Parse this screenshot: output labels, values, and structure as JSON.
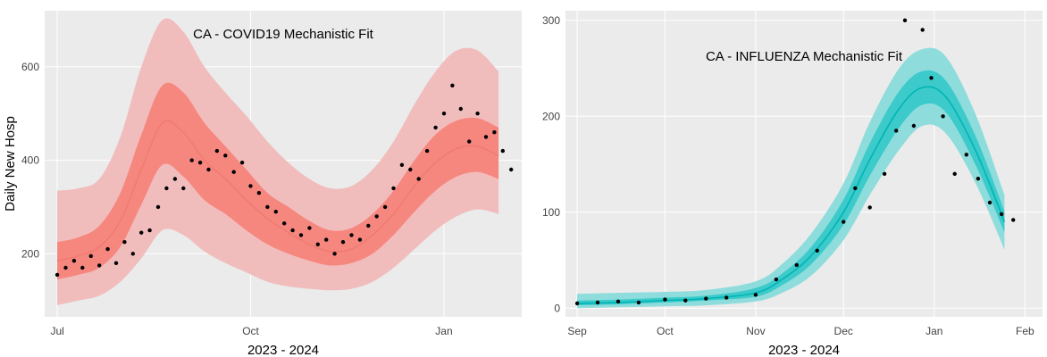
{
  "chart_data": [
    {
      "type": "area",
      "title": "CA - COVID19 Mechanistic Fit",
      "xlabel": "2023 - 2024",
      "ylabel": "Daily New Hosp",
      "x_range": [
        "2023-06-25",
        "2024-02-07"
      ],
      "ylim": [
        65,
        720
      ],
      "x_ticks": [
        {
          "date": "2023-07-01",
          "label": "Jul"
        },
        {
          "date": "2023-10-01",
          "label": "Oct"
        },
        {
          "date": "2024-01-01",
          "label": "Jan"
        }
      ],
      "y_ticks": [
        200,
        400,
        600
      ],
      "grid": true,
      "legend": "none",
      "colors": {
        "band_outer": "#f1bcbc",
        "band_inner": "#f6877f",
        "median": "#f07b73",
        "points": "#000000",
        "plot_bg": "#ebebeb"
      },
      "band": {
        "x": [
          "2023-07-01",
          "2023-07-11",
          "2023-07-21",
          "2023-07-31",
          "2023-08-10",
          "2023-08-20",
          "2023-08-30",
          "2023-09-09",
          "2023-09-19",
          "2023-09-29",
          "2023-10-09",
          "2023-10-19",
          "2023-10-29",
          "2023-11-08",
          "2023-11-18",
          "2023-11-28",
          "2023-12-08",
          "2023-12-18",
          "2023-12-28",
          "2024-01-07",
          "2024-01-17",
          "2024-01-27"
        ],
        "median": [
          185,
          195,
          215,
          270,
          380,
          480,
          460,
          400,
          360,
          315,
          275,
          245,
          220,
          205,
          210,
          240,
          285,
          345,
          395,
          425,
          430,
          410
        ],
        "inner_low": [
          145,
          155,
          170,
          215,
          305,
          390,
          365,
          315,
          285,
          250,
          220,
          200,
          185,
          175,
          180,
          200,
          240,
          290,
          335,
          365,
          375,
          360
        ],
        "inner_high": [
          225,
          235,
          260,
          330,
          455,
          560,
          545,
          480,
          430,
          380,
          330,
          300,
          270,
          250,
          255,
          285,
          335,
          400,
          455,
          485,
          490,
          470
        ],
        "outer_low": [
          90,
          100,
          110,
          140,
          190,
          250,
          240,
          205,
          180,
          160,
          140,
          130,
          125,
          122,
          125,
          140,
          170,
          210,
          250,
          280,
          295,
          285
        ],
        "outer_high": [
          335,
          340,
          360,
          450,
          600,
          700,
          675,
          600,
          545,
          495,
          440,
          395,
          360,
          340,
          345,
          380,
          440,
          520,
          590,
          635,
          635,
          590
        ]
      },
      "points": {
        "x": [
          "2023-07-01",
          "2023-07-05",
          "2023-07-09",
          "2023-07-13",
          "2023-07-17",
          "2023-07-21",
          "2023-07-25",
          "2023-07-29",
          "2023-08-02",
          "2023-08-06",
          "2023-08-10",
          "2023-08-14",
          "2023-08-18",
          "2023-08-22",
          "2023-08-26",
          "2023-08-30",
          "2023-09-03",
          "2023-09-07",
          "2023-09-11",
          "2023-09-15",
          "2023-09-19",
          "2023-09-23",
          "2023-09-27",
          "2023-10-01",
          "2023-10-05",
          "2023-10-09",
          "2023-10-13",
          "2023-10-17",
          "2023-10-21",
          "2023-10-25",
          "2023-10-29",
          "2023-11-02",
          "2023-11-06",
          "2023-11-10",
          "2023-11-14",
          "2023-11-18",
          "2023-11-22",
          "2023-11-26",
          "2023-11-30",
          "2023-12-04",
          "2023-12-08",
          "2023-12-12",
          "2023-12-16",
          "2023-12-20",
          "2023-12-24",
          "2023-12-28",
          "2024-01-01",
          "2024-01-05",
          "2024-01-09",
          "2024-01-13",
          "2024-01-17",
          "2024-01-21",
          "2024-01-25",
          "2024-01-29",
          "2024-02-02"
        ],
        "y": [
          155,
          170,
          185,
          170,
          195,
          175,
          210,
          180,
          225,
          200,
          245,
          250,
          300,
          340,
          360,
          340,
          400,
          395,
          380,
          420,
          410,
          375,
          395,
          345,
          330,
          300,
          290,
          265,
          250,
          240,
          255,
          220,
          230,
          200,
          225,
          240,
          230,
          260,
          280,
          300,
          340,
          390,
          380,
          360,
          420,
          470,
          500,
          560,
          510,
          440,
          500,
          450,
          460,
          420,
          380
        ]
      }
    },
    {
      "type": "area",
      "title": "CA - INFLUENZA Mechanistic Fit",
      "xlabel": "2023 - 2024",
      "ylabel": "",
      "x_range": [
        "2023-08-28",
        "2024-02-07"
      ],
      "ylim": [
        -9,
        310
      ],
      "x_ticks": [
        {
          "date": "2023-09-01",
          "label": "Sep"
        },
        {
          "date": "2023-10-01",
          "label": "Oct"
        },
        {
          "date": "2023-11-01",
          "label": "Nov"
        },
        {
          "date": "2023-12-01",
          "label": "Dec"
        },
        {
          "date": "2024-01-01",
          "label": "Jan"
        },
        {
          "date": "2024-02-01",
          "label": "Feb"
        }
      ],
      "y_ticks": [
        0,
        100,
        200,
        300
      ],
      "grid": true,
      "legend": "none",
      "colors": {
        "band_outer": "#8edcdc",
        "band_inner": "#3ccaca",
        "median": "#00b5b5",
        "points": "#000000",
        "plot_bg": "#ebebeb"
      },
      "band": {
        "x": [
          "2023-09-01",
          "2023-09-15",
          "2023-10-01",
          "2023-10-15",
          "2023-11-01",
          "2023-11-10",
          "2023-11-20",
          "2023-12-01",
          "2023-12-10",
          "2023-12-20",
          "2023-12-28",
          "2024-01-05",
          "2024-01-15",
          "2024-01-25"
        ],
        "median": [
          5,
          6,
          8,
          10,
          16,
          30,
          55,
          100,
          155,
          208,
          230,
          220,
          165,
          90
        ],
        "inner_low": [
          3,
          4,
          6,
          8,
          12,
          24,
          46,
          87,
          138,
          188,
          212,
          204,
          150,
          79
        ],
        "inner_high": [
          8,
          9,
          11,
          13,
          21,
          36,
          64,
          113,
          172,
          226,
          247,
          237,
          180,
          101
        ],
        "outer_low": [
          0,
          1,
          2,
          3,
          7,
          16,
          34,
          71,
          118,
          165,
          190,
          182,
          131,
          61
        ],
        "outer_high": [
          15,
          16,
          17,
          19,
          28,
          46,
          78,
          130,
          194,
          250,
          270,
          262,
          203,
          118
        ]
      },
      "points": {
        "x": [
          "2023-09-01",
          "2023-09-08",
          "2023-09-15",
          "2023-09-22",
          "2023-10-01",
          "2023-10-08",
          "2023-10-15",
          "2023-10-22",
          "2023-11-01",
          "2023-11-08",
          "2023-11-15",
          "2023-11-22",
          "2023-12-01",
          "2023-12-05",
          "2023-12-10",
          "2023-12-15",
          "2023-12-19",
          "2023-12-22",
          "2023-12-25",
          "2023-12-28",
          "2023-12-31",
          "2024-01-04",
          "2024-01-08",
          "2024-01-12",
          "2024-01-16",
          "2024-01-20",
          "2024-01-24",
          "2024-01-28"
        ],
        "y": [
          5,
          6,
          7,
          6,
          9,
          8,
          10,
          11,
          14,
          30,
          45,
          60,
          90,
          125,
          105,
          140,
          185,
          300,
          190,
          290,
          240,
          200,
          140,
          160,
          135,
          110,
          98,
          92
        ]
      }
    }
  ]
}
